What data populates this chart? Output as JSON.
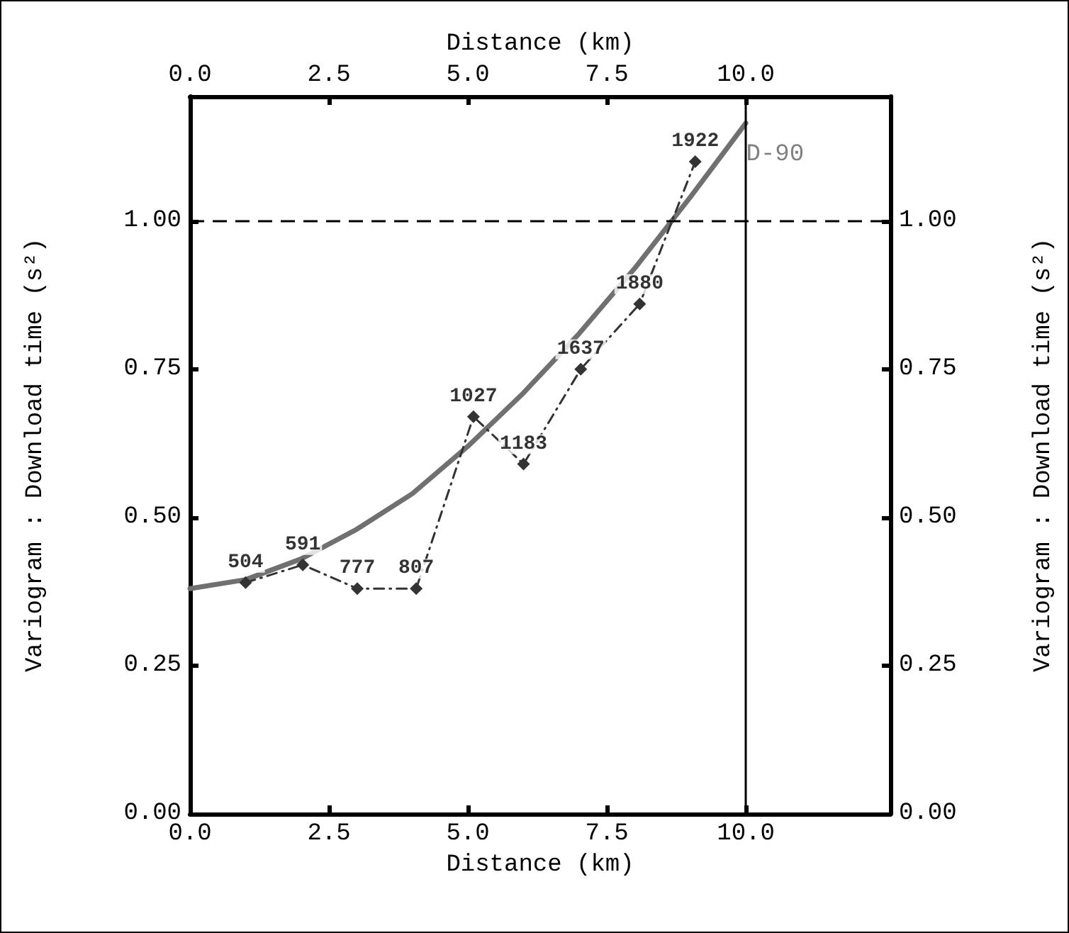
{
  "chart_data": {
    "type": "line",
    "xlabel": "Distance (km)",
    "x2label": "Distance (km)",
    "ylabel": "Variogram : Download time (s²)",
    "y2label": "Variogram : Download time (s²)",
    "xlim": [
      0,
      12.6
    ],
    "xticks": [
      {
        "value": 0,
        "label": "0.0"
      },
      {
        "value": 2.5,
        "label": "2.5"
      },
      {
        "value": 5,
        "label": "5.0"
      },
      {
        "value": 7.5,
        "label": "7.5"
      },
      {
        "value": 10,
        "label": "10.0"
      }
    ],
    "x2lim": [
      0,
      12.6
    ],
    "x2ticks": [
      {
        "value": 0,
        "label": "0.0"
      },
      {
        "value": 2.5,
        "label": "2.5"
      },
      {
        "value": 5,
        "label": "5.0"
      },
      {
        "value": 7.5,
        "label": "7.5"
      },
      {
        "value": 10,
        "label": "10.0"
      }
    ],
    "ylim": [
      0,
      1.21
    ],
    "yticks": [
      {
        "value": 0,
        "label": "0.00"
      },
      {
        "value": 0.25,
        "label": "0.25"
      },
      {
        "value": 0.5,
        "label": "0.50"
      },
      {
        "value": 0.75,
        "label": "0.75"
      },
      {
        "value": 1,
        "label": "1.00"
      }
    ],
    "y2lim": [
      0,
      1.21
    ],
    "y2ticks": [
      {
        "value": 0,
        "label": "0.00"
      },
      {
        "value": 0.25,
        "label": "0.25"
      },
      {
        "value": 0.5,
        "label": "0.50"
      },
      {
        "value": 0.75,
        "label": "0.75"
      },
      {
        "value": 1,
        "label": "1.00"
      }
    ],
    "grid": false,
    "series": [
      {
        "color": "#333333",
        "marker": "diamond",
        "line_style": "dashed",
        "x": [
          1.0,
          2.03,
          3.01,
          4.07,
          5.1,
          6.0,
          7.03,
          8.09,
          9.09
        ],
        "values": [
          0.39,
          0.42,
          0.38,
          0.38,
          0.67,
          0.59,
          0.75,
          0.86,
          1.1
        ]
      },
      {
        "color": "#707070",
        "marker": "none",
        "line_style": "solid",
        "x": [
          0,
          1,
          2,
          3,
          4,
          5,
          6,
          7,
          8,
          9,
          10
        ],
        "values": [
          0.38,
          0.395,
          0.43,
          0.48,
          0.54,
          0.62,
          0.71,
          0.81,
          0.92,
          1.04,
          1.165
        ]
      }
    ],
    "annotations": [
      {
        "text": "504",
        "x": 1.0,
        "y": 0.39
      },
      {
        "text": "591",
        "x": 2.03,
        "y": 0.42
      },
      {
        "text": "777",
        "x": 3.01,
        "y": 0.38
      },
      {
        "text": "807",
        "x": 4.07,
        "y": 0.38
      },
      {
        "text": "1027",
        "x": 5.1,
        "y": 0.67
      },
      {
        "text": "1183",
        "x": 6.0,
        "y": 0.59
      },
      {
        "text": "1637",
        "x": 7.03,
        "y": 0.75
      },
      {
        "text": "1880",
        "x": 8.09,
        "y": 0.86
      },
      {
        "text": "1922",
        "x": 9.09,
        "y": 1.1
      }
    ],
    "ref_lines": [
      {
        "axis": "x",
        "value": 10,
        "label": "D-90",
        "color": "#000000",
        "line_style": "solid"
      },
      {
        "axis": "y",
        "value": 1,
        "color": "#000000",
        "line_style": "dashed"
      }
    ]
  }
}
